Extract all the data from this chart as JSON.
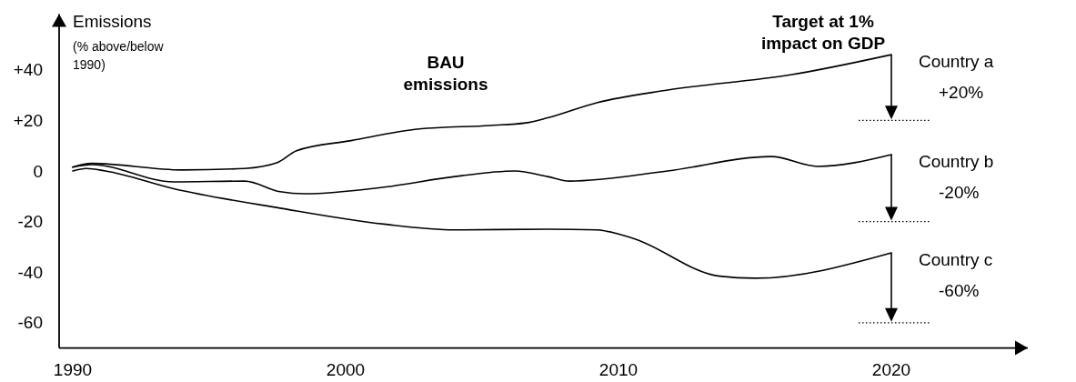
{
  "chart_data": {
    "type": "line",
    "ylabel": "Emissions (% above/below 1990)",
    "xlim": [
      1989.5,
      2025
    ],
    "ylim": [
      -70,
      62
    ],
    "xticks": [
      1990,
      2000,
      2010,
      2020
    ],
    "yticks": [
      {
        "value": 40,
        "label": "+40"
      },
      {
        "value": 20,
        "label": "+20"
      },
      0,
      -20,
      -40,
      -60
    ],
    "grid": false,
    "legend": false,
    "marker": "none",
    "line_style": "solid",
    "series": [
      {
        "name": "Country a",
        "color": "#000000",
        "x": [
          1990,
          1990.7,
          1994,
          1996.3,
          1997.5,
          1998.2,
          2000.2,
          2002.7,
          2005.3,
          2006.6,
          2007.4,
          2009.2,
          2011.8,
          2016.3,
          2020
        ],
        "values": [
          1.5,
          3,
          0.4,
          1,
          3.3,
          8,
          12,
          16.6,
          18,
          19,
          21,
          27,
          32,
          38,
          46
        ]
      },
      {
        "name": "Country b",
        "color": "#000000",
        "x": [
          1990,
          1990.7,
          1993.7,
          1996.3,
          1997.6,
          1998.5,
          2001.4,
          2004,
          2006.2,
          2007.4,
          2008.2,
          2011.8,
          2015.6,
          2017.3,
          2020
        ],
        "values": [
          1.5,
          2.5,
          -4.3,
          -4,
          -8.2,
          -9,
          -6.4,
          -2.2,
          0,
          -2.2,
          -4,
          0,
          5.7,
          1.8,
          6.5
        ]
      },
      {
        "name": "Country c",
        "color": "#000000",
        "x": [
          1990,
          1990.5,
          1991.2,
          1993.7,
          1997.6,
          2001.4,
          2004,
          2007.4,
          2009.2,
          2010.5,
          2013.7,
          2015,
          2020
        ],
        "values": [
          0,
          1,
          0,
          -7,
          -14.7,
          -21,
          -23.3,
          -23,
          -23.3,
          -26.5,
          -41.6,
          -42.4,
          -32.4
        ]
      }
    ],
    "ref_lines": [
      {
        "axis": "y",
        "value": 20,
        "label": "+20%",
        "line_style": "dotted"
      },
      {
        "axis": "y",
        "value": -20,
        "label": "-20%",
        "line_style": "dotted"
      },
      {
        "axis": "y",
        "value": -60,
        "label": "-60%",
        "line_style": "dotted"
      }
    ],
    "annotations": [
      "BAU emissions",
      "Target at 1% impact on GDP"
    ]
  }
}
